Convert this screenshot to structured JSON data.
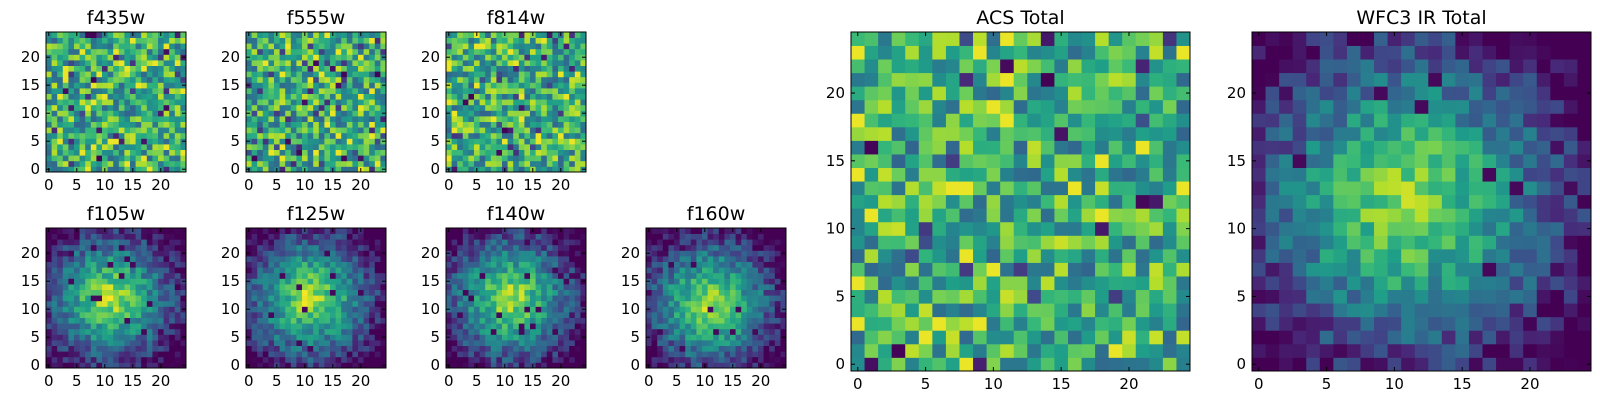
{
  "chart_data": [
    {
      "type": "heatmap",
      "title": "f435w",
      "grid_size": 25,
      "colormap": "viridis",
      "x_ticks": [
        0,
        5,
        10,
        15,
        20
      ],
      "y_ticks": [
        0,
        5,
        10,
        15,
        20
      ],
      "pattern": "noise",
      "seed": 11
    },
    {
      "type": "heatmap",
      "title": "f555w",
      "grid_size": 25,
      "colormap": "viridis",
      "x_ticks": [
        0,
        5,
        10,
        15,
        20
      ],
      "y_ticks": [
        0,
        5,
        10,
        15,
        20
      ],
      "pattern": "noise",
      "seed": 23
    },
    {
      "type": "heatmap",
      "title": "f814w",
      "grid_size": 25,
      "colormap": "viridis",
      "x_ticks": [
        0,
        5,
        10,
        15,
        20
      ],
      "y_ticks": [
        0,
        5,
        10,
        15,
        20
      ],
      "pattern": "noise",
      "seed": 37
    },
    {
      "type": "heatmap",
      "title": "f105w",
      "grid_size": 25,
      "colormap": "viridis",
      "x_ticks": [
        0,
        5,
        10,
        15,
        20
      ],
      "y_ticks": [
        0,
        5,
        10,
        15,
        20
      ],
      "pattern": "centered-blob",
      "center": [
        11,
        12
      ],
      "seed": 41
    },
    {
      "type": "heatmap",
      "title": "f125w",
      "grid_size": 25,
      "colormap": "viridis",
      "x_ticks": [
        0,
        5,
        10,
        15,
        20
      ],
      "y_ticks": [
        0,
        5,
        10,
        15,
        20
      ],
      "pattern": "centered-blob",
      "center": [
        11,
        12
      ],
      "seed": 53
    },
    {
      "type": "heatmap",
      "title": "f140w",
      "grid_size": 25,
      "colormap": "viridis",
      "x_ticks": [
        0,
        5,
        10,
        15,
        20
      ],
      "y_ticks": [
        0,
        5,
        10,
        15,
        20
      ],
      "pattern": "centered-blob",
      "center": [
        11,
        12
      ],
      "seed": 67
    },
    {
      "type": "heatmap",
      "title": "f160w",
      "grid_size": 25,
      "colormap": "viridis",
      "x_ticks": [
        0,
        5,
        10,
        15,
        20
      ],
      "y_ticks": [
        0,
        5,
        10,
        15,
        20
      ],
      "pattern": "centered-blob",
      "center": [
        11,
        11
      ],
      "seed": 79
    },
    {
      "type": "heatmap",
      "title": "ACS Total",
      "grid_size": 25,
      "colormap": "viridis",
      "x_ticks": [
        0,
        5,
        10,
        15,
        20
      ],
      "y_ticks": [
        0,
        5,
        10,
        15,
        20
      ],
      "pattern": "noise",
      "seed": 97
    },
    {
      "type": "heatmap",
      "title": "WFC3 IR Total",
      "grid_size": 25,
      "colormap": "viridis",
      "x_ticks": [
        0,
        5,
        10,
        15,
        20
      ],
      "y_ticks": [
        0,
        5,
        10,
        15,
        20
      ],
      "pattern": "centered-blob",
      "center": [
        11,
        12
      ],
      "seed": 113
    }
  ]
}
